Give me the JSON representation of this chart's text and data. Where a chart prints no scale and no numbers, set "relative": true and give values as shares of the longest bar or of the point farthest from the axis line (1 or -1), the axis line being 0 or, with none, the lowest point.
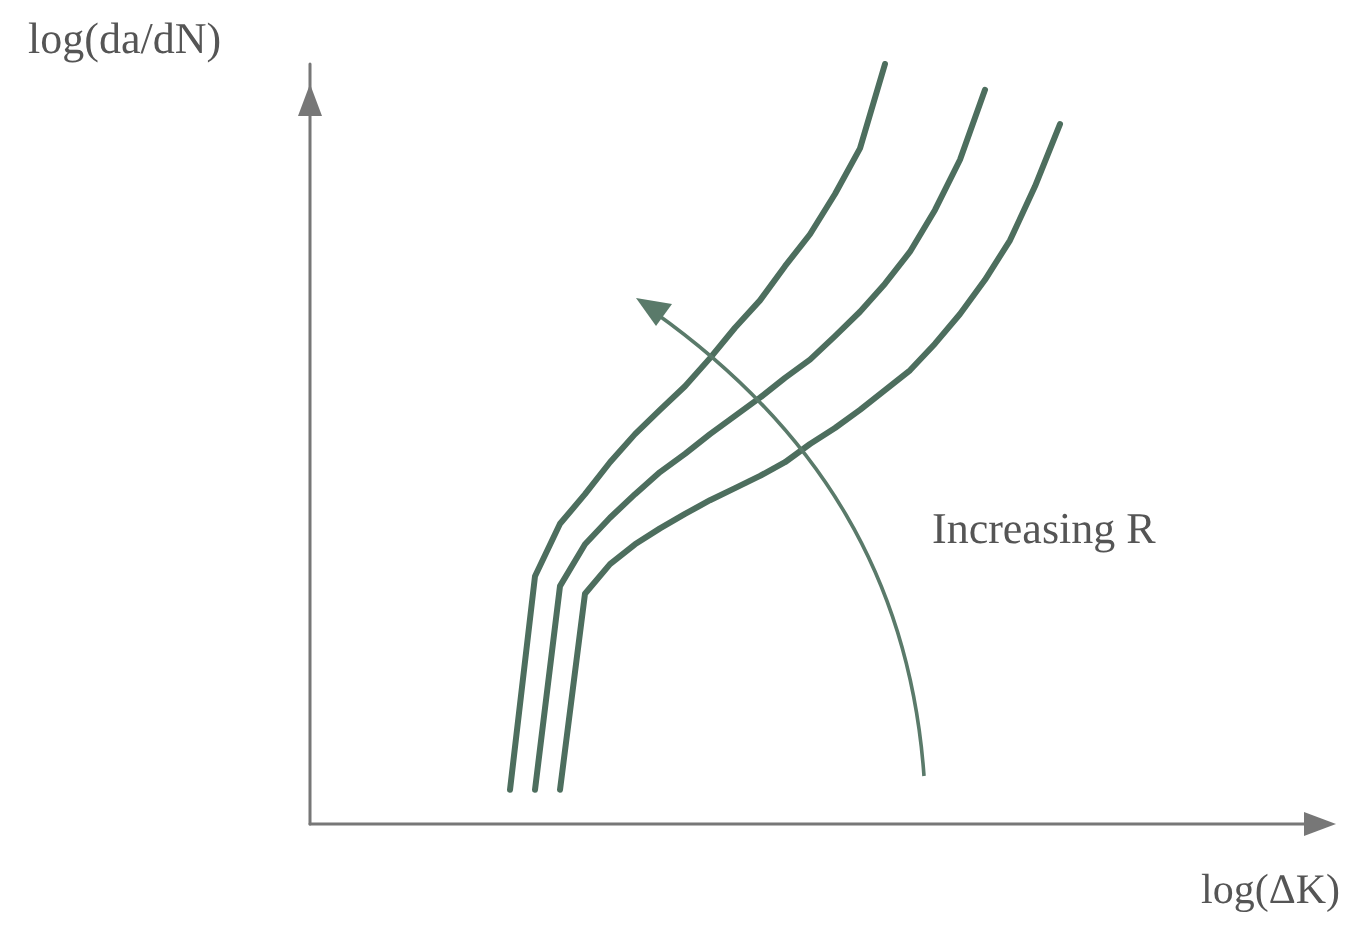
{
  "chart_data": {
    "type": "line",
    "relative": true,
    "xlabel": "log(ΔK)",
    "ylabel": "log(da/dN)",
    "annotations": [
      "Increasing R"
    ],
    "marker": "none",
    "line_style": "solid",
    "categories": [
      null,
      null,
      null,
      null,
      null,
      null,
      null,
      null,
      null,
      null,
      null,
      null,
      null,
      null,
      null,
      null,
      null,
      null,
      null,
      null,
      null,
      null,
      null,
      null,
      null,
      null,
      null,
      null,
      null,
      null,
      null,
      null,
      null,
      null,
      null,
      null,
      null,
      null,
      null,
      null,
      null
    ],
    "series": [
      {
        "color": "#4d6e5e",
        "values": [
          null,
          null,
          null,
          null,
          null,
          null,
          null,
          null,
          0.045,
          0.326,
          0.395,
          0.434,
          0.476,
          0.513,
          0.545,
          0.576,
          0.613,
          0.653,
          0.689,
          0.734,
          0.776,
          0.829,
          0.889,
          1.0,
          null,
          null,
          null,
          null,
          null,
          null,
          null,
          null,
          null,
          null,
          null,
          null,
          null,
          null,
          null,
          null,
          null
        ]
      },
      {
        "color": "#4d6e5e",
        "values": [
          null,
          null,
          null,
          null,
          null,
          null,
          null,
          null,
          null,
          0.045,
          0.313,
          0.368,
          0.403,
          0.434,
          0.463,
          0.487,
          0.513,
          0.537,
          0.561,
          0.587,
          0.611,
          0.642,
          0.674,
          0.711,
          0.753,
          0.808,
          0.874,
          0.966,
          null,
          null,
          null,
          null,
          null,
          null,
          null,
          null,
          null,
          null,
          null,
          null,
          null
        ]
      },
      {
        "color": "#4d6e5e",
        "values": [
          null,
          null,
          null,
          null,
          null,
          null,
          null,
          null,
          null,
          null,
          0.045,
          0.303,
          0.342,
          0.368,
          0.389,
          0.408,
          0.426,
          0.442,
          0.458,
          0.476,
          0.5,
          0.521,
          0.545,
          0.571,
          0.597,
          0.632,
          0.671,
          0.716,
          0.768,
          0.839,
          0.921,
          null,
          null,
          null,
          null,
          null,
          null,
          null,
          null,
          null,
          null
        ]
      }
    ]
  }
}
